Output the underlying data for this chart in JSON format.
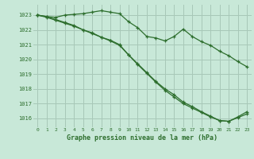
{
  "bg_color": "#c8e8d8",
  "grid_color": "#a8c8b8",
  "line_color": "#2d6e2d",
  "title": "Graphe pression niveau de la mer (hPa)",
  "ylim": [
    1015.4,
    1023.7
  ],
  "yticks": [
    1016,
    1017,
    1018,
    1019,
    1020,
    1021,
    1022,
    1023
  ],
  "xticks": [
    0,
    1,
    2,
    3,
    4,
    5,
    6,
    7,
    8,
    9,
    10,
    11,
    12,
    13,
    14,
    15,
    16,
    17,
    18,
    19,
    20,
    21,
    22,
    23
  ],
  "line1_x": [
    0,
    1,
    2,
    3,
    4,
    5,
    6,
    7,
    8,
    9,
    10,
    11,
    12,
    13,
    14,
    15,
    16,
    17,
    18,
    19,
    20,
    21,
    22,
    23
  ],
  "line1_y": [
    1023.0,
    1022.9,
    1022.85,
    1023.0,
    1023.05,
    1023.1,
    1023.2,
    1023.3,
    1023.2,
    1023.1,
    1022.55,
    1022.15,
    1021.55,
    1021.45,
    1021.25,
    1021.55,
    1022.05,
    1021.55,
    1021.2,
    1020.95,
    1020.55,
    1020.25,
    1019.85,
    1019.5
  ],
  "line2_x": [
    0,
    1,
    2,
    3,
    4,
    5,
    6,
    7,
    8,
    9,
    10,
    11,
    12,
    13,
    14,
    15,
    16,
    17,
    18,
    19,
    20,
    21,
    22,
    23
  ],
  "line2_y": [
    1023.0,
    1022.9,
    1022.7,
    1022.5,
    1022.3,
    1022.0,
    1021.8,
    1021.5,
    1021.3,
    1021.0,
    1020.3,
    1019.7,
    1019.1,
    1018.5,
    1018.0,
    1017.6,
    1017.1,
    1016.8,
    1016.45,
    1016.15,
    1015.85,
    1015.8,
    1016.05,
    1016.3
  ],
  "line3_x": [
    0,
    1,
    2,
    3,
    4,
    5,
    6,
    7,
    8,
    9,
    10,
    11,
    12,
    13,
    14,
    15,
    16,
    17,
    18,
    19,
    20,
    21,
    22,
    23
  ],
  "line3_y": [
    1023.0,
    1022.85,
    1022.65,
    1022.45,
    1022.25,
    1022.0,
    1021.75,
    1021.5,
    1021.25,
    1020.95,
    1020.3,
    1019.65,
    1019.05,
    1018.45,
    1017.9,
    1017.45,
    1017.0,
    1016.7,
    1016.4,
    1016.1,
    1015.85,
    1015.8,
    1016.1,
    1016.45
  ]
}
